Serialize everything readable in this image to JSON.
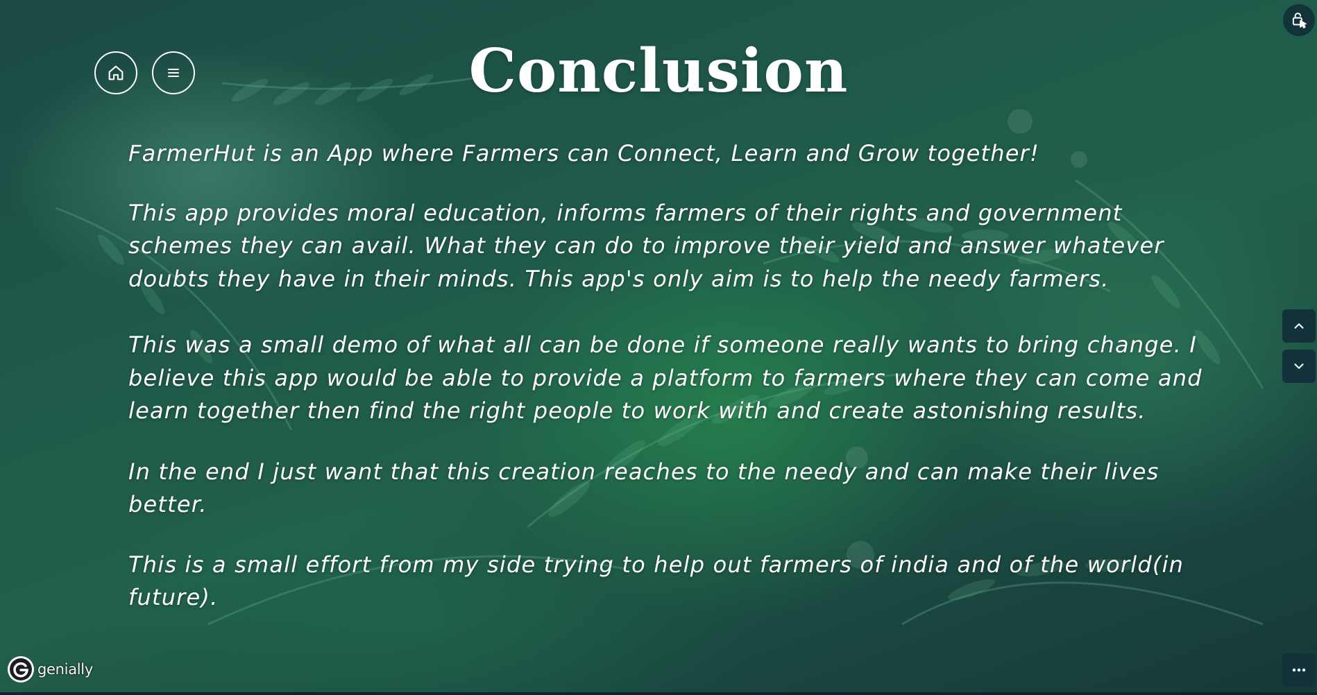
{
  "slide": {
    "title": "Conclusion",
    "paragraphs": [
      "FarmerHut is an App where Farmers can Connect, Learn and Grow together!",
      "This app provides moral education, informs farmers of their rights and government schemes they can avail. What they can do to improve their yield and answer whatever doubts they have in their minds. This app's only aim is to help the needy farmers.",
      "This was a small demo of what all can be done if someone really wants to bring change. I believe this app would be able to provide a platform to farmers where they can come and learn together then find the right people to work with and create astonishing results.",
      "In the end I just want that this creation reaches to the needy and can make their lives better.",
      "This is a small effort from my side trying to help out farmers of india and of the world(in future)."
    ]
  },
  "nav": {
    "home_icon": "home-icon",
    "menu_icon": "menu-icon"
  },
  "controls": {
    "lock_icon": "unlock-pointer-icon",
    "up_icon": "chevron-up-icon",
    "down_icon": "chevron-down-icon",
    "more_icon": "more-dots-icon"
  },
  "branding": {
    "text": "genially"
  },
  "colors": {
    "text": "#ffffff",
    "control_bg": "#12313a",
    "background_dark": "#163a36",
    "background_green": "#21604a"
  }
}
